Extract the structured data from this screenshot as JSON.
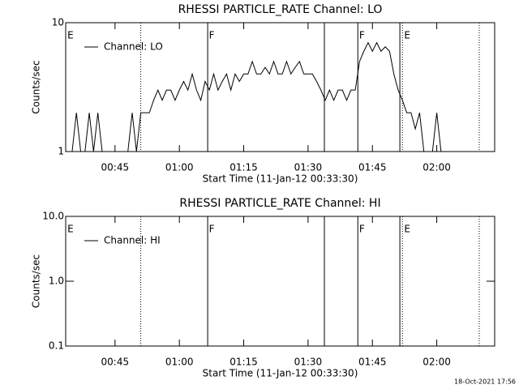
{
  "chart_data": [
    {
      "type": "line",
      "title": "RHESSI PARTICLE_RATE Channel: LO",
      "xlabel": "Start Time (11-Jan-12 00:33:30)",
      "ylabel": "Counts/sec",
      "xlim": [
        33.5,
        133.5
      ],
      "xticks": [
        {
          "value": 45,
          "label": "00:45"
        },
        {
          "value": 60,
          "label": "01:00"
        },
        {
          "value": 75,
          "label": "01:15"
        },
        {
          "value": 90,
          "label": "01:30"
        },
        {
          "value": 105,
          "label": "01:45"
        },
        {
          "value": 120,
          "label": "02:00"
        }
      ],
      "ylim": [
        1,
        10
      ],
      "yticks": [
        1,
        10
      ],
      "log_y": true,
      "legend": "upper-left",
      "x": [
        34,
        35,
        36,
        37,
        38,
        39,
        40,
        41,
        42,
        43,
        44,
        45,
        46,
        47,
        48,
        49,
        50,
        51,
        52,
        53,
        54,
        55,
        56,
        57,
        58,
        59,
        60,
        61,
        62,
        63,
        64,
        65,
        66,
        67,
        68,
        69,
        70,
        71,
        72,
        73,
        74,
        75,
        76,
        77,
        78,
        79,
        80,
        81,
        82,
        83,
        84,
        85,
        86,
        87,
        88,
        89,
        90,
        91,
        92,
        93,
        94,
        95,
        96,
        97,
        98,
        99,
        100,
        101,
        102,
        103,
        104,
        105,
        106,
        107,
        108,
        109,
        110,
        111,
        112,
        113,
        114,
        115,
        116,
        117,
        118,
        119,
        120,
        121,
        122,
        123,
        124,
        125,
        126,
        127,
        128,
        129,
        130
      ],
      "series": [
        {
          "name": "Channel: LO",
          "color": "#000000",
          "values": [
            1,
            1,
            2,
            1,
            1,
            2,
            1,
            2,
            1,
            1,
            1,
            1,
            1,
            1,
            1,
            2,
            1,
            2,
            2,
            2,
            2.5,
            3,
            2.5,
            3,
            3,
            2.5,
            3,
            3.5,
            3,
            4,
            3,
            2.5,
            3.5,
            3,
            4,
            3,
            3.5,
            4,
            3,
            4,
            3.5,
            4,
            4,
            5,
            4,
            4,
            4.5,
            4,
            5,
            4,
            4,
            5,
            4,
            4.5,
            5,
            4,
            4,
            4,
            3.5,
            3,
            2.5,
            3,
            2.5,
            3,
            3,
            2.5,
            3,
            3,
            5,
            6,
            7,
            6,
            7,
            6,
            6.5,
            6,
            4,
            3,
            2.5,
            2,
            2,
            1.5,
            2,
            1,
            1,
            1,
            2,
            1,
            1,
            1,
            1,
            1,
            1,
            1,
            1,
            1,
            1
          ]
        }
      ],
      "lines": [
        {
          "x": 51.0,
          "style": "dotted"
        },
        {
          "x": 66.6,
          "style": "solid"
        },
        {
          "x": 93.8,
          "style": "solid"
        },
        {
          "x": 101.6,
          "style": "solid"
        },
        {
          "x": 111.4,
          "style": "solid"
        },
        {
          "x": 112.0,
          "style": "dotted"
        },
        {
          "x": 129.9,
          "style": "dotted"
        }
      ],
      "flags": [
        {
          "x": 33.9,
          "label": "E"
        },
        {
          "x": 66.9,
          "label": "F"
        },
        {
          "x": 101.9,
          "label": "F"
        },
        {
          "x": 112.4,
          "label": "E"
        }
      ]
    },
    {
      "type": "line",
      "title": "RHESSI PARTICLE_RATE Channel: HI",
      "xlabel": "Start Time (11-Jan-12 00:33:30)",
      "ylabel": "Counts/sec",
      "xlim": [
        33.5,
        133.5
      ],
      "xticks": [
        {
          "value": 45,
          "label": "00:45"
        },
        {
          "value": 60,
          "label": "01:00"
        },
        {
          "value": 75,
          "label": "01:15"
        },
        {
          "value": 90,
          "label": "01:30"
        },
        {
          "value": 105,
          "label": "01:45"
        },
        {
          "value": 120,
          "label": "02:00"
        }
      ],
      "ylim": [
        0.1,
        10
      ],
      "yticks": [
        0.1,
        {
          "value": 1,
          "label": "1.0"
        },
        {
          "value": 10,
          "label": "10.0"
        }
      ],
      "log_y": true,
      "legend": "upper-left",
      "x": [],
      "series": [
        {
          "name": "Channel: HI",
          "color": "#000000",
          "values": []
        }
      ],
      "lines": [
        {
          "x": 51.0,
          "style": "dotted"
        },
        {
          "x": 66.6,
          "style": "solid"
        },
        {
          "x": 93.8,
          "style": "solid"
        },
        {
          "x": 101.6,
          "style": "solid"
        },
        {
          "x": 111.4,
          "style": "solid"
        },
        {
          "x": 112.0,
          "style": "dotted"
        },
        {
          "x": 129.9,
          "style": "dotted"
        }
      ],
      "flags": [
        {
          "x": 33.9,
          "label": "E"
        },
        {
          "x": 66.9,
          "label": "F"
        },
        {
          "x": 101.9,
          "label": "F"
        },
        {
          "x": 112.4,
          "label": "E"
        }
      ]
    }
  ],
  "timestamp": "18-Oct-2021 17:56"
}
